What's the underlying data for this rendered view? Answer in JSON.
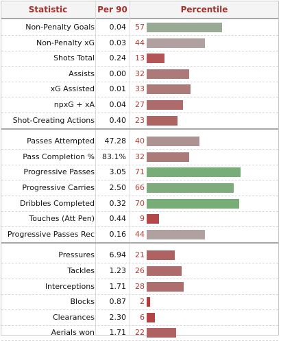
{
  "header": {
    "statistic": "Statistic",
    "per90": "Per 90",
    "percentile": "Percentile"
  },
  "colors": {
    "green": "#7aad7a",
    "grey": "#afa1a1",
    "red": "#ac6060",
    "header_text": "#a5302a"
  },
  "groups": [
    [
      {
        "stat": "Non-Penalty Goals",
        "per90": "0.04",
        "pct": 57,
        "bar_color": "#99ab95"
      },
      {
        "stat": "Non-Penalty xG",
        "per90": "0.03",
        "pct": 44,
        "bar_color": "#b1a0a0"
      },
      {
        "stat": "Shots Total",
        "per90": "0.24",
        "pct": 13,
        "bar_color": "#b35457"
      },
      {
        "stat": "Assists",
        "per90": "0.00",
        "pct": 32,
        "bar_color": "#ad7a7a"
      },
      {
        "stat": "xG Assisted",
        "per90": "0.01",
        "pct": 33,
        "bar_color": "#ad7a7a"
      },
      {
        "stat": "npxG + xA",
        "per90": "0.04",
        "pct": 27,
        "bar_color": "#ae6b6b"
      },
      {
        "stat": "Shot-Creating Actions",
        "per90": "0.40",
        "pct": 23,
        "bar_color": "#af6464"
      }
    ],
    [
      {
        "stat": "Passes Attempted",
        "per90": "47.28",
        "pct": 40,
        "bar_color": "#ad9292"
      },
      {
        "stat": "Pass Completion %",
        "per90": "83.1%",
        "pct": 32,
        "bar_color": "#ad7a7a"
      },
      {
        "stat": "Progressive Passes",
        "per90": "3.05",
        "pct": 71,
        "bar_color": "#79ad77"
      },
      {
        "stat": "Progressive Carries",
        "per90": "2.50",
        "pct": 66,
        "bar_color": "#80ac7d"
      },
      {
        "stat": "Dribbles Completed",
        "per90": "0.32",
        "pct": 70,
        "bar_color": "#79ad77"
      },
      {
        "stat": "Touches (Att Pen)",
        "per90": "0.44",
        "pct": 9,
        "bar_color": "#b3484a"
      },
      {
        "stat": "Progressive Passes Rec",
        "per90": "0.16",
        "pct": 44,
        "bar_color": "#b1a0a0"
      }
    ],
    [
      {
        "stat": "Pressures",
        "per90": "6.94",
        "pct": 21,
        "bar_color": "#af6262"
      },
      {
        "stat": "Tackles",
        "per90": "1.23",
        "pct": 26,
        "bar_color": "#ae6b6b"
      },
      {
        "stat": "Interceptions",
        "per90": "1.71",
        "pct": 28,
        "bar_color": "#ae6e6e"
      },
      {
        "stat": "Blocks",
        "per90": "0.87",
        "pct": 2,
        "bar_color": "#b43a3d"
      },
      {
        "stat": "Clearances",
        "per90": "2.30",
        "pct": 6,
        "bar_color": "#b44346"
      },
      {
        "stat": "Aerials won",
        "per90": "1.71",
        "pct": 22,
        "bar_color": "#af6262"
      }
    ]
  ]
}
